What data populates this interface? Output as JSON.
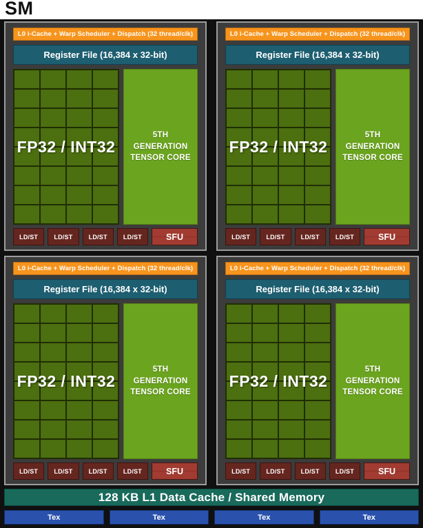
{
  "title": "SM",
  "colors": {
    "outer_bg": "#101010",
    "block_bg": "#3c3c3c",
    "frame_gray": "#9d9d9d",
    "orange": "#f7941d",
    "teal": "#1d5e70",
    "grid_line": "#1f2e03",
    "grid_green": "#4c6f10",
    "tensor_green": "#6ba41e",
    "ldst_red": "#65261f",
    "sfu_red": "#a23b31",
    "l1_teal": "#196a5b",
    "tex_blue": "#2a52ad"
  },
  "quadrant_count": 4,
  "quadrant": {
    "scheduler_label": "L0 i-Cache + Warp Scheduler + Dispatch (32 thread/clk)",
    "register_label": "Register File (16,384 x 32-bit)",
    "core_label": "FP32 / INT32",
    "tensor_lines": [
      "5TH",
      "GENERATION",
      "TENSOR CORE"
    ],
    "ldst_label": "LD/ST",
    "ldst_count": 4,
    "sfu_label": "SFU",
    "grid": {
      "rows": 8,
      "cols": 4
    }
  },
  "l1_label": "128 KB L1 Data Cache / Shared Memory",
  "tex_label": "Tex",
  "tex_count": 4
}
